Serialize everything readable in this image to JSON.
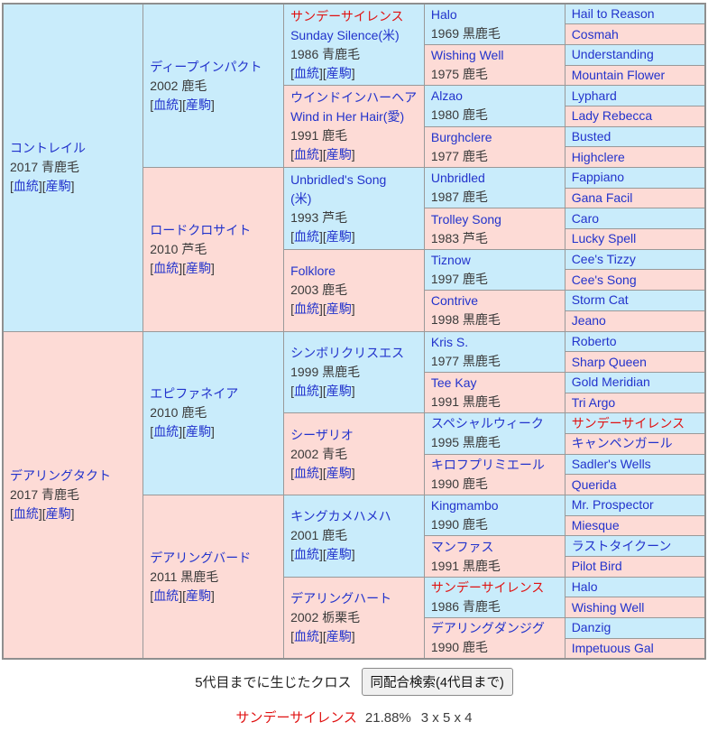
{
  "colors": {
    "male_cell_bg": "#c9ecfb",
    "female_cell_bg": "#fddbd6",
    "link_blue": "#2233cc",
    "highlight_red": "#e01212",
    "year_text": "#3a3a3a",
    "border_gray": "#999999",
    "button_bg": "#f0f0f0"
  },
  "table": {
    "bracket_open": "[",
    "bracket_close": "]",
    "cell_links": [
      "血統",
      "産駒"
    ],
    "generations": {
      "gen1": [
        {
          "name": "コントレイル",
          "sex": "male",
          "year": "2017 青鹿毛",
          "links": true
        },
        {
          "name": "デアリングタクト",
          "sex": "female",
          "year": "2017 青鹿毛",
          "links": true
        }
      ],
      "gen2": [
        {
          "name": "ディープインパクト",
          "sex": "male",
          "year": "2002 鹿毛",
          "links": true
        },
        {
          "name": "ロードクロサイト",
          "sex": "female",
          "year": "2010 芦毛",
          "links": true
        },
        {
          "name": "エピファネイア",
          "sex": "male",
          "year": "2010 鹿毛",
          "links": true
        },
        {
          "name": "デアリングバード",
          "sex": "female",
          "year": "2011 黒鹿毛",
          "links": true
        }
      ],
      "gen3": [
        {
          "name": "サンデーサイレンス",
          "highlight": true,
          "english": "Sunday Silence(米)",
          "sex": "male",
          "year": "1986 青鹿毛",
          "links": true
        },
        {
          "name": "ウインドインハーヘア",
          "english": "Wind in Her Hair(愛)",
          "sex": "female",
          "year": "1991 鹿毛",
          "links": true
        },
        {
          "name": "Unbridled's Song",
          "english": "(米)",
          "sex": "male",
          "year": "1993 芦毛",
          "links": true
        },
        {
          "name": "Folklore",
          "sex": "female",
          "year": "2003 鹿毛",
          "links": true
        },
        {
          "name": "シンボリクリスエス",
          "sex": "male",
          "year": "1999 黒鹿毛",
          "links": true
        },
        {
          "name": "シーザリオ",
          "sex": "female",
          "year": "2002 青毛",
          "links": true
        },
        {
          "name": "キングカメハメハ",
          "sex": "male",
          "year": "2001 鹿毛",
          "links": true
        },
        {
          "name": "デアリングハート",
          "sex": "female",
          "year": "2002 栃栗毛",
          "links": true
        }
      ],
      "gen4": [
        {
          "name": "Halo",
          "sex": "male",
          "year": "1969 黒鹿毛"
        },
        {
          "name": "Wishing Well",
          "sex": "female",
          "year": "1975 鹿毛"
        },
        {
          "name": "Alzao",
          "sex": "male",
          "year": "1980 鹿毛"
        },
        {
          "name": "Burghclere",
          "sex": "female",
          "year": "1977 鹿毛"
        },
        {
          "name": "Unbridled",
          "sex": "male",
          "year": "1987 鹿毛"
        },
        {
          "name": "Trolley Song",
          "sex": "female",
          "year": "1983 芦毛"
        },
        {
          "name": "Tiznow",
          "sex": "male",
          "year": "1997 鹿毛"
        },
        {
          "name": "Contrive",
          "sex": "female",
          "year": "1998 黒鹿毛"
        },
        {
          "name": "Kris S.",
          "sex": "male",
          "year": "1977 黒鹿毛"
        },
        {
          "name": "Tee Kay",
          "sex": "female",
          "year": "1991 黒鹿毛"
        },
        {
          "name": "スペシャルウィーク",
          "sex": "male",
          "year": "1995 黒鹿毛"
        },
        {
          "name": "キロフプリミエール",
          "sex": "female",
          "year": "1990 鹿毛"
        },
        {
          "name": "Kingmambo",
          "sex": "male",
          "year": "1990 鹿毛"
        },
        {
          "name": "マンファス",
          "sex": "female",
          "year": "1991 黒鹿毛"
        },
        {
          "name": "サンデーサイレンス",
          "highlight": true,
          "sex": "male",
          "year": "1986 青鹿毛"
        },
        {
          "name": "デアリングダンジグ",
          "sex": "female",
          "year": "1990 鹿毛"
        }
      ],
      "gen5": [
        {
          "name": "Hail to Reason",
          "sex": "male"
        },
        {
          "name": "Cosmah",
          "sex": "female"
        },
        {
          "name": "Understanding",
          "sex": "male"
        },
        {
          "name": "Mountain Flower",
          "sex": "female"
        },
        {
          "name": "Lyphard",
          "sex": "male"
        },
        {
          "name": "Lady Rebecca",
          "sex": "female"
        },
        {
          "name": "Busted",
          "sex": "male"
        },
        {
          "name": "Highclere",
          "sex": "female"
        },
        {
          "name": "Fappiano",
          "sex": "male"
        },
        {
          "name": "Gana Facil",
          "sex": "female"
        },
        {
          "name": "Caro",
          "sex": "male"
        },
        {
          "name": "Lucky Spell",
          "sex": "female"
        },
        {
          "name": "Cee's Tizzy",
          "sex": "male"
        },
        {
          "name": "Cee's Song",
          "sex": "female"
        },
        {
          "name": "Storm Cat",
          "sex": "male"
        },
        {
          "name": "Jeano",
          "sex": "female"
        },
        {
          "name": "Roberto",
          "sex": "male"
        },
        {
          "name": "Sharp Queen",
          "sex": "female"
        },
        {
          "name": "Gold Meridian",
          "sex": "male"
        },
        {
          "name": "Tri Argo",
          "sex": "female"
        },
        {
          "name": "サンデーサイレンス",
          "highlight": true,
          "sex": "male"
        },
        {
          "name": "キャンペンガール",
          "sex": "female"
        },
        {
          "name": "Sadler's Wells",
          "sex": "male"
        },
        {
          "name": "Querida",
          "sex": "female"
        },
        {
          "name": "Mr. Prospector",
          "sex": "male"
        },
        {
          "name": "Miesque",
          "sex": "female"
        },
        {
          "name": "ラストタイクーン",
          "sex": "male"
        },
        {
          "name": "Pilot Bird",
          "sex": "female"
        },
        {
          "name": "Halo",
          "sex": "male"
        },
        {
          "name": "Wishing Well",
          "sex": "female"
        },
        {
          "name": "Danzig",
          "sex": "male"
        },
        {
          "name": "Impetuous Gal",
          "sex": "female"
        }
      ]
    }
  },
  "footer": {
    "cross_heading": "5代目までに生じたクロス",
    "search_button_label": "同配合検索(4代目まで)",
    "cross_result": {
      "name": "サンデーサイレンス",
      "percent": "21.88%",
      "pattern": "3 x 5 x 4"
    }
  }
}
